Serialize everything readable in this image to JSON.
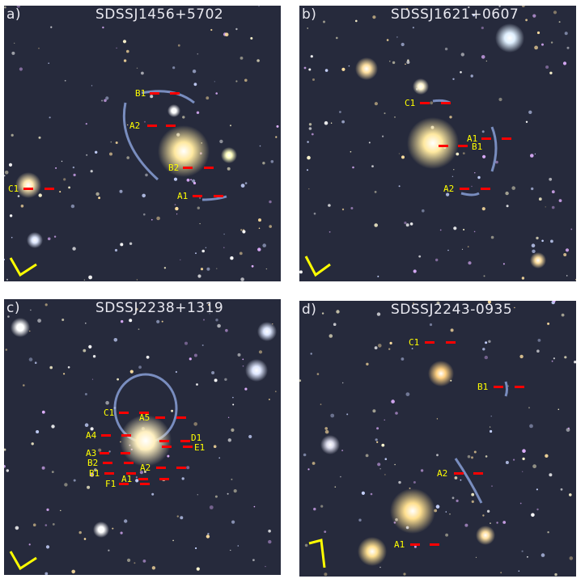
{
  "panels": [
    {
      "letter": "a)",
      "name": "SDSSJ1456+5702",
      "labels": [
        "B1",
        "A2",
        "B2",
        "A1",
        "C1"
      ]
    },
    {
      "letter": "b)",
      "name": "SDSSJ1621+0607",
      "labels": [
        "C1",
        "A1",
        "B1",
        "A2"
      ]
    },
    {
      "letter": "c)",
      "name": "SDSSJ2238+1319",
      "labels": [
        "C1",
        "A5",
        "A4",
        "D1",
        "E1",
        "A3",
        "B2",
        "A2",
        "B1",
        "A1",
        "F1"
      ]
    },
    {
      "letter": "d)",
      "name": "SDSSJ2243-0935",
      "labels": [
        "C1",
        "B1",
        "A2",
        "A1"
      ]
    }
  ],
  "colors": {
    "label": "#ffff00",
    "marker": "#ff0000",
    "compass": "#ffff00",
    "sky": "#262a3c",
    "arc": "#8fa6e0"
  }
}
